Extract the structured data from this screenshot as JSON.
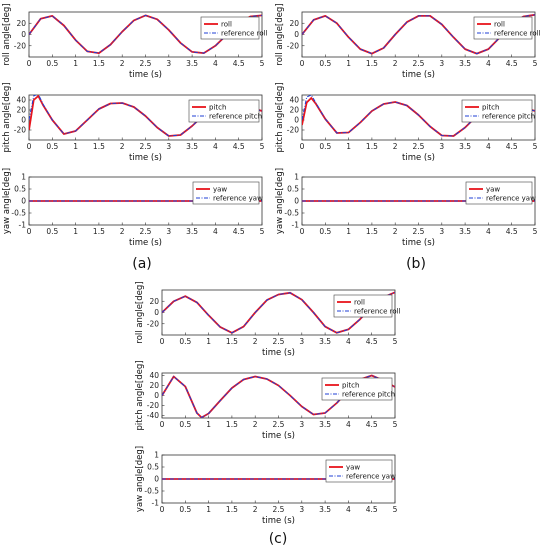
{
  "colors": {
    "actual": "#e8141c",
    "reference": "#1f3fd6",
    "zero_line": "#5a5a8a"
  },
  "captions": [
    "(a)",
    "(b)",
    "(c)"
  ],
  "chart_data": [
    {
      "panel": "(a)",
      "type": "line",
      "quantity": "roll",
      "xlabel": "time (s)",
      "ylabel": "roll angle[deg]",
      "xlim": [
        0,
        5
      ],
      "ylim": [
        -40,
        40
      ],
      "xticks": [
        0,
        0.5,
        1,
        1.5,
        2,
        2.5,
        3,
        3.5,
        4,
        4.5,
        5
      ],
      "yticks": [
        -20,
        0,
        20
      ],
      "legend_position": "right",
      "series": [
        {
          "name": "roll",
          "style": "solid",
          "color": "#e8141c",
          "x": [
            0,
            0.25,
            0.5,
            0.75,
            1,
            1.25,
            1.5,
            1.75,
            2,
            2.25,
            2.5,
            2.75,
            3,
            3.25,
            3.5,
            3.75,
            4,
            4.25,
            4.5,
            4.75,
            5
          ],
          "y": [
            0,
            28,
            33,
            16,
            -10,
            -30,
            -33,
            -18,
            5,
            25,
            34,
            27,
            8,
            -15,
            -31,
            -33,
            -20,
            0,
            20,
            32,
            34
          ]
        },
        {
          "name": "reference roll",
          "style": "dashdot",
          "color": "#1f3fd6",
          "x": [
            0,
            0.25,
            0.5,
            0.75,
            1,
            1.25,
            1.5,
            1.75,
            2,
            2.25,
            2.5,
            2.75,
            3,
            3.25,
            3.5,
            3.75,
            4,
            4.25,
            4.5,
            4.75,
            5
          ],
          "y": [
            0,
            28,
            33,
            16,
            -10,
            -30,
            -33,
            -18,
            5,
            25,
            34,
            27,
            8,
            -15,
            -31,
            -33,
            -20,
            0,
            20,
            32,
            34
          ]
        }
      ]
    },
    {
      "panel": "(a)",
      "type": "line",
      "quantity": "pitch",
      "xlabel": "time (s)",
      "ylabel": "pitch angle[deg]",
      "xlim": [
        0,
        5
      ],
      "ylim": [
        -40,
        50
      ],
      "xticks": [
        0,
        0.5,
        1,
        1.5,
        2,
        2.5,
        3,
        3.5,
        4,
        4.5,
        5
      ],
      "yticks": [
        -20,
        0,
        20,
        40
      ],
      "legend_position": "right",
      "series": [
        {
          "name": "pitch",
          "style": "solid",
          "color": "#e8141c",
          "x": [
            0,
            0.1,
            0.2,
            0.3,
            0.5,
            0.75,
            1,
            1.25,
            1.5,
            1.75,
            2,
            2.25,
            2.5,
            2.75,
            3,
            3.25,
            3.5,
            3.75,
            4,
            4.25,
            4.5,
            4.75,
            5
          ],
          "y": [
            -20,
            40,
            48,
            30,
            0,
            -28,
            -22,
            0,
            22,
            33,
            34,
            26,
            8,
            -15,
            -32,
            -30,
            -12,
            10,
            30,
            37,
            33,
            25,
            18
          ]
        },
        {
          "name": "reference pitch",
          "style": "dashdot",
          "color": "#1f3fd6",
          "x": [
            0,
            0.1,
            0.2,
            0.3,
            0.5,
            0.75,
            1,
            1.25,
            1.5,
            1.75,
            2,
            2.25,
            2.5,
            2.75,
            3,
            3.25,
            3.5,
            3.75,
            4,
            4.25,
            4.5,
            4.75,
            5
          ],
          "y": [
            0,
            48,
            52,
            32,
            0,
            -28,
            -22,
            0,
            22,
            33,
            34,
            26,
            8,
            -15,
            -32,
            -30,
            -12,
            10,
            30,
            37,
            33,
            25,
            18
          ]
        }
      ]
    },
    {
      "panel": "(a)",
      "type": "line",
      "quantity": "yaw",
      "xlabel": "time (s)",
      "ylabel": "yaw angle[deg]",
      "xlim": [
        0,
        5
      ],
      "ylim": [
        -1,
        1
      ],
      "xticks": [
        0,
        0.5,
        1,
        1.5,
        2,
        2.5,
        3,
        3.5,
        4,
        4.5,
        5
      ],
      "yticks": [
        -1,
        -0.5,
        0,
        0.5,
        1
      ],
      "legend_position": "right",
      "series": [
        {
          "name": "yaw",
          "style": "solid",
          "color": "#e8141c",
          "x": [
            0,
            5
          ],
          "y": [
            0,
            0
          ]
        },
        {
          "name": "reference yaw",
          "style": "dashdot",
          "color": "#1f3fd6",
          "x": [
            0,
            5
          ],
          "y": [
            0,
            0
          ]
        }
      ]
    },
    {
      "panel": "(b)",
      "type": "line",
      "quantity": "roll",
      "xlabel": "time (s)",
      "ylabel": "roll angle[deg]",
      "xlim": [
        0,
        5
      ],
      "ylim": [
        -40,
        40
      ],
      "xticks": [
        0,
        0.5,
        1,
        1.5,
        2,
        2.5,
        3,
        3.5,
        4,
        4.5,
        5
      ],
      "yticks": [
        -20,
        0,
        20
      ],
      "legend_position": "right",
      "series": [
        {
          "name": "roll",
          "style": "solid",
          "color": "#e8141c",
          "x": [
            0,
            0.25,
            0.5,
            0.75,
            1,
            1.25,
            1.5,
            1.75,
            2,
            2.25,
            2.5,
            2.75,
            3,
            3.25,
            3.5,
            3.75,
            4,
            4.25,
            4.5,
            4.75,
            5
          ],
          "y": [
            0,
            26,
            33,
            20,
            -5,
            -26,
            -34,
            -24,
            0,
            22,
            33,
            33,
            18,
            -5,
            -26,
            -34,
            -26,
            -5,
            18,
            32,
            35
          ]
        },
        {
          "name": "reference roll",
          "style": "dashdot",
          "color": "#1f3fd6",
          "x": [
            0,
            0.25,
            0.5,
            0.75,
            1,
            1.25,
            1.5,
            1.75,
            2,
            2.25,
            2.5,
            2.75,
            3,
            3.25,
            3.5,
            3.75,
            4,
            4.25,
            4.5,
            4.75,
            5
          ],
          "y": [
            0,
            26,
            33,
            20,
            -5,
            -26,
            -34,
            -24,
            0,
            22,
            33,
            33,
            18,
            -5,
            -26,
            -34,
            -26,
            -5,
            18,
            32,
            35
          ]
        }
      ]
    },
    {
      "panel": "(b)",
      "type": "line",
      "quantity": "pitch",
      "xlabel": "time (s)",
      "ylabel": "pitch angle[deg]",
      "xlim": [
        0,
        5
      ],
      "ylim": [
        -40,
        50
      ],
      "xticks": [
        0,
        0.5,
        1,
        1.5,
        2,
        2.5,
        3,
        3.5,
        4,
        4.5,
        5
      ],
      "yticks": [
        -20,
        0,
        20,
        40
      ],
      "legend_position": "right",
      "series": [
        {
          "name": "pitch",
          "style": "solid",
          "color": "#e8141c",
          "x": [
            0,
            0.1,
            0.2,
            0.3,
            0.5,
            0.75,
            1,
            1.25,
            1.5,
            1.75,
            2,
            2.25,
            2.5,
            2.75,
            3,
            3.25,
            3.5,
            3.75,
            4,
            4.25,
            4.5,
            4.75,
            5
          ],
          "y": [
            -10,
            35,
            44,
            32,
            2,
            -26,
            -25,
            -5,
            18,
            32,
            36,
            29,
            10,
            -13,
            -31,
            -32,
            -15,
            8,
            28,
            37,
            34,
            25,
            18
          ]
        },
        {
          "name": "reference pitch",
          "style": "dashdot",
          "color": "#1f3fd6",
          "x": [
            0,
            0.1,
            0.2,
            0.3,
            0.5,
            0.75,
            1,
            1.25,
            1.5,
            1.75,
            2,
            2.25,
            2.5,
            2.75,
            3,
            3.25,
            3.5,
            3.75,
            4,
            4.25,
            4.5,
            4.75,
            5
          ],
          "y": [
            0,
            46,
            50,
            34,
            2,
            -26,
            -25,
            -5,
            18,
            32,
            36,
            29,
            10,
            -13,
            -31,
            -32,
            -15,
            8,
            28,
            37,
            34,
            25,
            18
          ]
        }
      ]
    },
    {
      "panel": "(b)",
      "type": "line",
      "quantity": "yaw",
      "xlabel": "time (s)",
      "ylabel": "yaw angle[deg]",
      "xlim": [
        0,
        5
      ],
      "ylim": [
        -1,
        1
      ],
      "xticks": [
        0,
        0.5,
        1,
        1.5,
        2,
        2.5,
        3,
        3.5,
        4,
        4.5,
        5
      ],
      "yticks": [
        -1,
        -0.5,
        0,
        0.5,
        1
      ],
      "legend_position": "right",
      "series": [
        {
          "name": "yaw",
          "style": "solid",
          "color": "#e8141c",
          "x": [
            0,
            5
          ],
          "y": [
            0,
            0
          ]
        },
        {
          "name": "reference yaw",
          "style": "dashdot",
          "color": "#1f3fd6",
          "x": [
            0,
            5
          ],
          "y": [
            0,
            0
          ]
        }
      ]
    },
    {
      "panel": "(c)",
      "type": "line",
      "quantity": "roll",
      "xlabel": "time (s)",
      "ylabel": "roll angle[deg]",
      "xlim": [
        0,
        5
      ],
      "ylim": [
        -40,
        40
      ],
      "xticks": [
        0,
        0.5,
        1,
        1.5,
        2,
        2.5,
        3,
        3.5,
        4,
        4.5,
        5
      ],
      "yticks": [
        -20,
        0,
        20
      ],
      "legend_position": "right",
      "series": [
        {
          "name": "roll",
          "style": "solid",
          "color": "#e8141c",
          "x": [
            0,
            0.25,
            0.5,
            0.75,
            1,
            1.25,
            1.5,
            1.75,
            2,
            2.25,
            2.5,
            2.75,
            3,
            3.25,
            3.5,
            3.75,
            4,
            4.25,
            4.5,
            4.75,
            5
          ],
          "y": [
            0,
            20,
            29,
            18,
            -5,
            -26,
            -36,
            -25,
            0,
            22,
            32,
            35,
            23,
            0,
            -25,
            -36,
            -30,
            -12,
            10,
            27,
            36
          ]
        },
        {
          "name": "reference roll",
          "style": "dashdot",
          "color": "#1f3fd6",
          "x": [
            0,
            0.25,
            0.5,
            0.75,
            1,
            1.25,
            1.5,
            1.75,
            2,
            2.25,
            2.5,
            2.75,
            3,
            3.25,
            3.5,
            3.75,
            4,
            4.25,
            4.5,
            4.75,
            5
          ],
          "y": [
            0,
            20,
            29,
            18,
            -5,
            -26,
            -36,
            -25,
            0,
            22,
            32,
            35,
            23,
            0,
            -25,
            -36,
            -30,
            -12,
            10,
            27,
            36
          ]
        }
      ]
    },
    {
      "panel": "(c)",
      "type": "line",
      "quantity": "pitch",
      "xlabel": "time (s)",
      "ylabel": "pitch angle[deg]",
      "xlim": [
        0,
        5
      ],
      "ylim": [
        -45,
        45
      ],
      "xticks": [
        0,
        0.5,
        1,
        1.5,
        2,
        2.5,
        3,
        3.5,
        4,
        4.5,
        5
      ],
      "yticks": [
        -40,
        -20,
        0,
        20,
        40
      ],
      "legend_position": "right",
      "series": [
        {
          "name": "pitch",
          "style": "solid",
          "color": "#e8141c",
          "x": [
            0,
            0.25,
            0.5,
            0.75,
            0.85,
            1,
            1.25,
            1.5,
            1.75,
            2,
            2.25,
            2.5,
            2.75,
            3,
            3.25,
            3.5,
            3.75,
            4,
            4.25,
            4.5,
            4.75,
            5
          ],
          "y": [
            0,
            38,
            18,
            -35,
            -44,
            -36,
            -10,
            15,
            32,
            38,
            33,
            20,
            0,
            -22,
            -38,
            -35,
            -15,
            10,
            32,
            40,
            30,
            17
          ]
        },
        {
          "name": "reference pitch",
          "style": "dashdot",
          "color": "#1f3fd6",
          "x": [
            0,
            0.25,
            0.5,
            0.75,
            0.85,
            1,
            1.25,
            1.5,
            1.75,
            2,
            2.25,
            2.5,
            2.75,
            3,
            3.25,
            3.5,
            3.75,
            4,
            4.25,
            4.5,
            4.75,
            5
          ],
          "y": [
            0,
            38,
            18,
            -35,
            -44,
            -36,
            -10,
            15,
            32,
            38,
            33,
            20,
            0,
            -22,
            -38,
            -35,
            -15,
            10,
            32,
            40,
            30,
            17
          ]
        }
      ]
    },
    {
      "panel": "(c)",
      "type": "line",
      "quantity": "yaw",
      "xlabel": "time (s)",
      "ylabel": "yaw angle[deg]",
      "xlim": [
        0,
        5
      ],
      "ylim": [
        -1,
        1
      ],
      "xticks": [
        0,
        0.5,
        1,
        1.5,
        2,
        2.5,
        3,
        3.5,
        4,
        4.5,
        5
      ],
      "yticks": [
        -1,
        -0.5,
        0,
        0.5,
        1
      ],
      "legend_position": "right",
      "series": [
        {
          "name": "yaw",
          "style": "solid",
          "color": "#e8141c",
          "x": [
            0,
            5
          ],
          "y": [
            0,
            0
          ]
        },
        {
          "name": "reference yaw",
          "style": "dashdot",
          "color": "#1f3fd6",
          "x": [
            0,
            5
          ],
          "y": [
            0,
            0
          ]
        }
      ]
    }
  ]
}
